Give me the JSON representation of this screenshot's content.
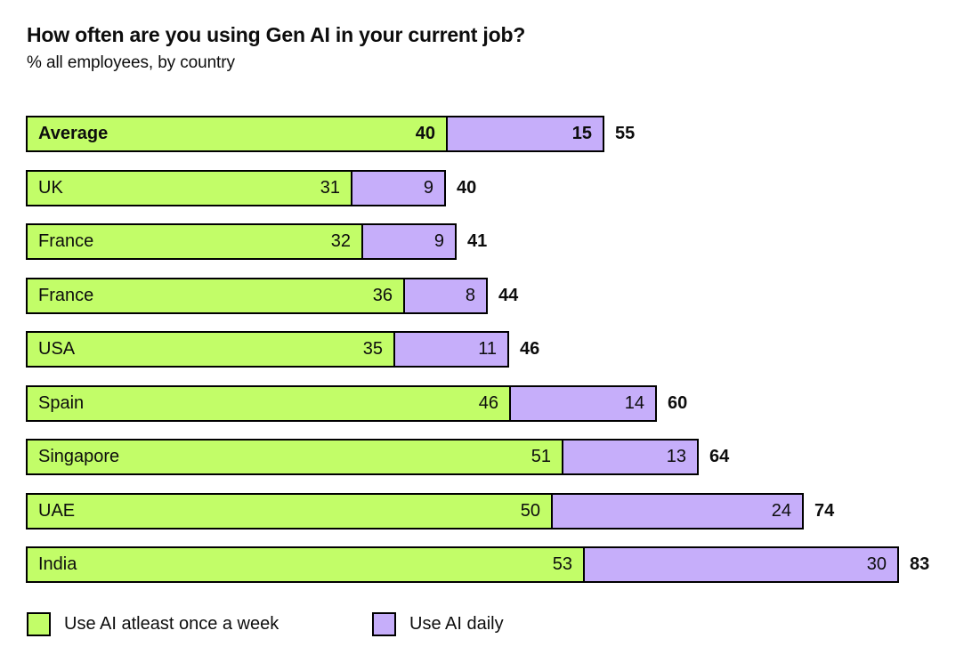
{
  "header": {
    "title": "How often are you using Gen AI in your current job?",
    "subtitle": "% all employees, by country"
  },
  "chart_data": {
    "type": "bar",
    "orientation": "horizontal",
    "stacked": true,
    "title": "How often are you using Gen AI in your current job?",
    "subtitle": "% all employees, by country",
    "categories": [
      "Average",
      "UK",
      "France",
      "France",
      "USA",
      "Spain",
      "Singapore",
      "UAE",
      "India"
    ],
    "series": [
      {
        "name": "Use AI atleast once a week",
        "color": "#C2FD68",
        "values": [
          40,
          31,
          32,
          36,
          35,
          46,
          51,
          50,
          53
        ]
      },
      {
        "name": "Use AI daily",
        "color": "#C6AEFA",
        "values": [
          15,
          9,
          9,
          8,
          11,
          14,
          13,
          24,
          30
        ]
      }
    ],
    "totals": [
      55,
      40,
      41,
      44,
      46,
      60,
      64,
      74,
      83
    ],
    "emphasized_category": "Average",
    "xlabel": "",
    "ylabel": "",
    "xlim": [
      0,
      83
    ],
    "grid": false,
    "legend_position": "bottom",
    "value_labels": "inside-right",
    "total_labels": "outside-right"
  },
  "legend": {
    "items": [
      {
        "label": "Use AI atleast once a week",
        "color": "#C2FD68"
      },
      {
        "label": "Use AI daily",
        "color": "#C6AEFA"
      }
    ]
  },
  "colors": {
    "weekly_segment": "#C2FD68",
    "daily_segment": "#C6AEFA",
    "bar_border": "#000000",
    "text": "#0D0D0D",
    "background": "#FFFFFF"
  }
}
